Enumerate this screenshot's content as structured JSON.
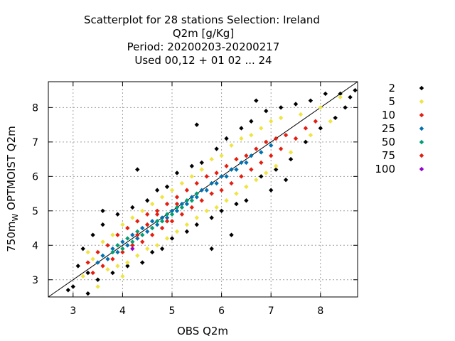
{
  "chart_data": {
    "type": "scatter",
    "title_lines": [
      "Scatterplot for   28 stations Selection: Ireland",
      "Q2m [g/Kg]",
      "Period: 20200203-20200217",
      "Used  00,12  + 01 02 ... 24"
    ],
    "xlabel": "OBS Q2m",
    "ylabel_main": "750m",
    "ylabel_sub": "W",
    "ylabel_rest": " OPTMOIST Q2m",
    "xlim": [
      2.5,
      8.75
    ],
    "ylim": [
      2.5,
      8.75
    ],
    "xticks": [
      3,
      4,
      5,
      6,
      7,
      8
    ],
    "yticks": [
      3,
      4,
      5,
      6,
      7,
      8
    ],
    "grid": true,
    "diagonal_line": true,
    "legend_position": "right",
    "density_classes": [
      {
        "label": "2",
        "color": "#000000"
      },
      {
        "label": "5",
        "color": "#f0e442"
      },
      {
        "label": "10",
        "color": "#e51e10"
      },
      {
        "label": "25",
        "color": "#0072b2"
      },
      {
        "label": "50",
        "color": "#009e73"
      },
      {
        "label": "75",
        "color": "#e51e10"
      },
      {
        "label": "100",
        "color": "#9400d3"
      }
    ],
    "series": [
      {
        "name": "2",
        "color": "#000000",
        "points": [
          [
            3.0,
            2.8
          ],
          [
            3.1,
            3.4
          ],
          [
            3.2,
            3.9
          ],
          [
            3.3,
            3.2
          ],
          [
            3.3,
            2.6
          ],
          [
            3.4,
            4.3
          ],
          [
            3.5,
            3.0
          ],
          [
            3.6,
            4.6
          ],
          [
            3.8,
            3.2
          ],
          [
            3.9,
            4.9
          ],
          [
            4.1,
            3.4
          ],
          [
            4.2,
            5.1
          ],
          [
            4.4,
            3.5
          ],
          [
            4.5,
            5.3
          ],
          [
            4.6,
            3.8
          ],
          [
            4.7,
            5.6
          ],
          [
            4.8,
            3.9
          ],
          [
            4.9,
            5.7
          ],
          [
            5.0,
            4.2
          ],
          [
            5.1,
            6.1
          ],
          [
            5.3,
            4.4
          ],
          [
            5.4,
            6.3
          ],
          [
            5.5,
            4.6
          ],
          [
            5.6,
            6.4
          ],
          [
            5.8,
            4.8
          ],
          [
            5.9,
            6.8
          ],
          [
            6.0,
            5.0
          ],
          [
            6.1,
            7.1
          ],
          [
            6.3,
            5.2
          ],
          [
            6.4,
            7.4
          ],
          [
            6.5,
            5.3
          ],
          [
            6.6,
            7.6
          ],
          [
            6.8,
            6.0
          ],
          [
            6.9,
            7.9
          ],
          [
            7.1,
            6.2
          ],
          [
            7.2,
            8.0
          ],
          [
            7.4,
            6.5
          ],
          [
            7.5,
            8.1
          ],
          [
            7.7,
            7.0
          ],
          [
            7.8,
            8.2
          ],
          [
            8.0,
            7.4
          ],
          [
            8.1,
            8.4
          ],
          [
            8.3,
            7.7
          ],
          [
            8.4,
            8.4
          ],
          [
            8.6,
            8.3
          ],
          [
            8.7,
            8.5
          ],
          [
            4.3,
            6.2
          ],
          [
            5.5,
            7.5
          ],
          [
            6.2,
            4.3
          ],
          [
            7.0,
            5.6
          ],
          [
            3.6,
            5.0
          ],
          [
            5.8,
            3.9
          ],
          [
            6.7,
            8.2
          ],
          [
            7.3,
            5.9
          ],
          [
            2.9,
            2.7
          ],
          [
            8.5,
            8.0
          ]
        ]
      },
      {
        "name": "5",
        "color": "#f0e442",
        "points": [
          [
            3.2,
            3.1
          ],
          [
            3.4,
            3.6
          ],
          [
            3.5,
            2.8
          ],
          [
            3.6,
            4.1
          ],
          [
            3.7,
            3.3
          ],
          [
            3.8,
            4.3
          ],
          [
            3.9,
            3.4
          ],
          [
            4.0,
            4.6
          ],
          [
            4.1,
            3.5
          ],
          [
            4.2,
            4.8
          ],
          [
            4.3,
            3.7
          ],
          [
            4.4,
            5.0
          ],
          [
            4.5,
            3.9
          ],
          [
            4.6,
            5.2
          ],
          [
            4.7,
            4.0
          ],
          [
            4.8,
            5.4
          ],
          [
            4.9,
            4.2
          ],
          [
            5.0,
            5.6
          ],
          [
            5.1,
            4.4
          ],
          [
            5.2,
            5.8
          ],
          [
            5.3,
            4.6
          ],
          [
            5.4,
            6.0
          ],
          [
            5.5,
            4.8
          ],
          [
            5.6,
            6.2
          ],
          [
            5.7,
            5.0
          ],
          [
            5.8,
            6.5
          ],
          [
            5.9,
            5.1
          ],
          [
            6.0,
            6.6
          ],
          [
            6.1,
            5.3
          ],
          [
            6.2,
            6.9
          ],
          [
            6.3,
            5.5
          ],
          [
            6.4,
            7.1
          ],
          [
            6.5,
            5.7
          ],
          [
            6.6,
            7.2
          ],
          [
            6.7,
            5.9
          ],
          [
            6.8,
            7.4
          ],
          [
            6.9,
            6.1
          ],
          [
            7.0,
            7.6
          ],
          [
            7.1,
            6.3
          ],
          [
            7.2,
            7.7
          ],
          [
            7.4,
            6.7
          ],
          [
            7.6,
            7.8
          ],
          [
            7.8,
            7.2
          ],
          [
            8.0,
            8.0
          ],
          [
            8.2,
            7.6
          ],
          [
            8.4,
            8.3
          ],
          [
            3.3,
            3.8
          ],
          [
            4.0,
            3.1
          ]
        ]
      },
      {
        "name": "10",
        "color": "#e51e10",
        "points": [
          [
            3.3,
            3.5
          ],
          [
            3.4,
            3.2
          ],
          [
            3.5,
            3.8
          ],
          [
            3.6,
            3.4
          ],
          [
            3.7,
            4.0
          ],
          [
            3.8,
            3.6
          ],
          [
            3.9,
            4.3
          ],
          [
            4.0,
            3.8
          ],
          [
            4.1,
            4.5
          ],
          [
            4.2,
            4.0
          ],
          [
            4.3,
            4.7
          ],
          [
            4.4,
            4.1
          ],
          [
            4.5,
            4.9
          ],
          [
            4.6,
            4.3
          ],
          [
            4.7,
            5.0
          ],
          [
            4.8,
            4.5
          ],
          [
            4.9,
            5.2
          ],
          [
            5.0,
            4.7
          ],
          [
            5.1,
            5.4
          ],
          [
            5.2,
            4.9
          ],
          [
            5.3,
            5.6
          ],
          [
            5.4,
            5.1
          ],
          [
            5.5,
            5.8
          ],
          [
            5.6,
            5.3
          ],
          [
            5.7,
            6.0
          ],
          [
            5.8,
            5.5
          ],
          [
            5.9,
            6.1
          ],
          [
            6.0,
            5.6
          ],
          [
            6.1,
            6.3
          ],
          [
            6.2,
            5.8
          ],
          [
            6.3,
            6.5
          ],
          [
            6.4,
            6.0
          ],
          [
            6.5,
            6.6
          ],
          [
            6.6,
            6.2
          ],
          [
            6.7,
            6.8
          ],
          [
            6.8,
            6.4
          ],
          [
            6.9,
            7.0
          ],
          [
            7.0,
            6.6
          ],
          [
            7.1,
            7.1
          ],
          [
            7.2,
            6.8
          ],
          [
            7.3,
            7.2
          ],
          [
            7.5,
            7.1
          ],
          [
            7.7,
            7.4
          ],
          [
            7.9,
            7.6
          ]
        ]
      },
      {
        "name": "25",
        "color": "#0072b2",
        "points": [
          [
            3.5,
            3.5
          ],
          [
            3.6,
            3.7
          ],
          [
            3.7,
            3.6
          ],
          [
            3.8,
            3.9
          ],
          [
            3.9,
            3.8
          ],
          [
            4.0,
            4.1
          ],
          [
            4.1,
            4.0
          ],
          [
            4.2,
            4.3
          ],
          [
            4.3,
            4.2
          ],
          [
            4.4,
            4.5
          ],
          [
            4.5,
            4.4
          ],
          [
            4.6,
            4.7
          ],
          [
            4.7,
            4.6
          ],
          [
            4.8,
            4.8
          ],
          [
            4.9,
            4.8
          ],
          [
            5.0,
            5.0
          ],
          [
            5.1,
            5.0
          ],
          [
            5.2,
            5.2
          ],
          [
            5.3,
            5.2
          ],
          [
            5.4,
            5.4
          ],
          [
            5.5,
            5.4
          ],
          [
            5.6,
            5.6
          ],
          [
            5.7,
            5.6
          ],
          [
            5.8,
            5.8
          ],
          [
            5.9,
            5.8
          ],
          [
            6.0,
            6.0
          ],
          [
            6.1,
            6.0
          ],
          [
            6.2,
            6.2
          ],
          [
            6.3,
            6.2
          ],
          [
            6.4,
            6.4
          ],
          [
            6.5,
            6.4
          ],
          [
            6.6,
            6.6
          ],
          [
            6.8,
            6.7
          ],
          [
            7.0,
            6.9
          ]
        ]
      },
      {
        "name": "50",
        "color": "#009e73",
        "points": [
          [
            3.8,
            3.8
          ],
          [
            3.9,
            4.0
          ],
          [
            4.0,
            3.9
          ],
          [
            4.1,
            4.2
          ],
          [
            4.2,
            4.1
          ],
          [
            4.3,
            4.4
          ],
          [
            4.4,
            4.3
          ],
          [
            4.5,
            4.6
          ],
          [
            4.6,
            4.5
          ],
          [
            4.7,
            4.7
          ],
          [
            4.8,
            4.7
          ],
          [
            4.9,
            4.9
          ],
          [
            5.0,
            4.9
          ],
          [
            5.1,
            5.1
          ],
          [
            5.2,
            5.1
          ],
          [
            5.3,
            5.3
          ],
          [
            5.4,
            5.3
          ],
          [
            5.5,
            5.5
          ]
        ]
      },
      {
        "name": "75",
        "color": "#e51e10",
        "points": [
          [
            4.3,
            4.3
          ],
          [
            4.5,
            4.6
          ],
          [
            4.7,
            4.9
          ],
          [
            4.9,
            4.7
          ],
          [
            5.1,
            5.2
          ]
        ]
      },
      {
        "name": "100",
        "color": "#9400d3",
        "points": [
          [
            4.2,
            3.9
          ]
        ]
      }
    ]
  }
}
